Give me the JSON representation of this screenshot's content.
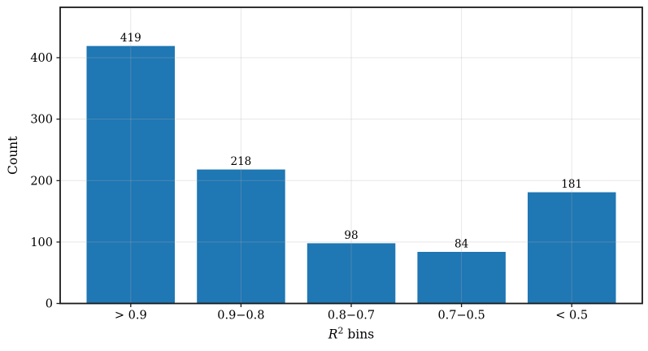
{
  "figure": {
    "background_color": "#ffffff"
  },
  "chart_data": {
    "type": "bar",
    "categories": [
      "> 0.9",
      "0.9−0.8",
      "0.8−0.7",
      "0.7−0.5",
      "< 0.5"
    ],
    "values": [
      419,
      218,
      98,
      84,
      181
    ],
    "bar_value_labels": [
      "419",
      "218",
      "98",
      "84",
      "181"
    ],
    "title": "",
    "xlabel": "R² bins",
    "xlabel_rich": [
      {
        "t": "R",
        "style": "italic"
      },
      {
        "t": "2",
        "sup": true
      },
      {
        "t": " bins",
        "style": "normal"
      }
    ],
    "ylabel": "Count",
    "yticks": [
      0,
      100,
      200,
      300,
      400
    ],
    "ytick_labels": [
      "0",
      "100",
      "200",
      "300",
      "400"
    ],
    "ylim": [
      0,
      482
    ],
    "grid": "both",
    "legend": "none",
    "colors": {
      "bar_fill": "#1f77b4",
      "frame": "#1a1a1a",
      "text": "#000000",
      "gridline": "#b0b0b0",
      "gridline_alpha": 0.3
    }
  }
}
